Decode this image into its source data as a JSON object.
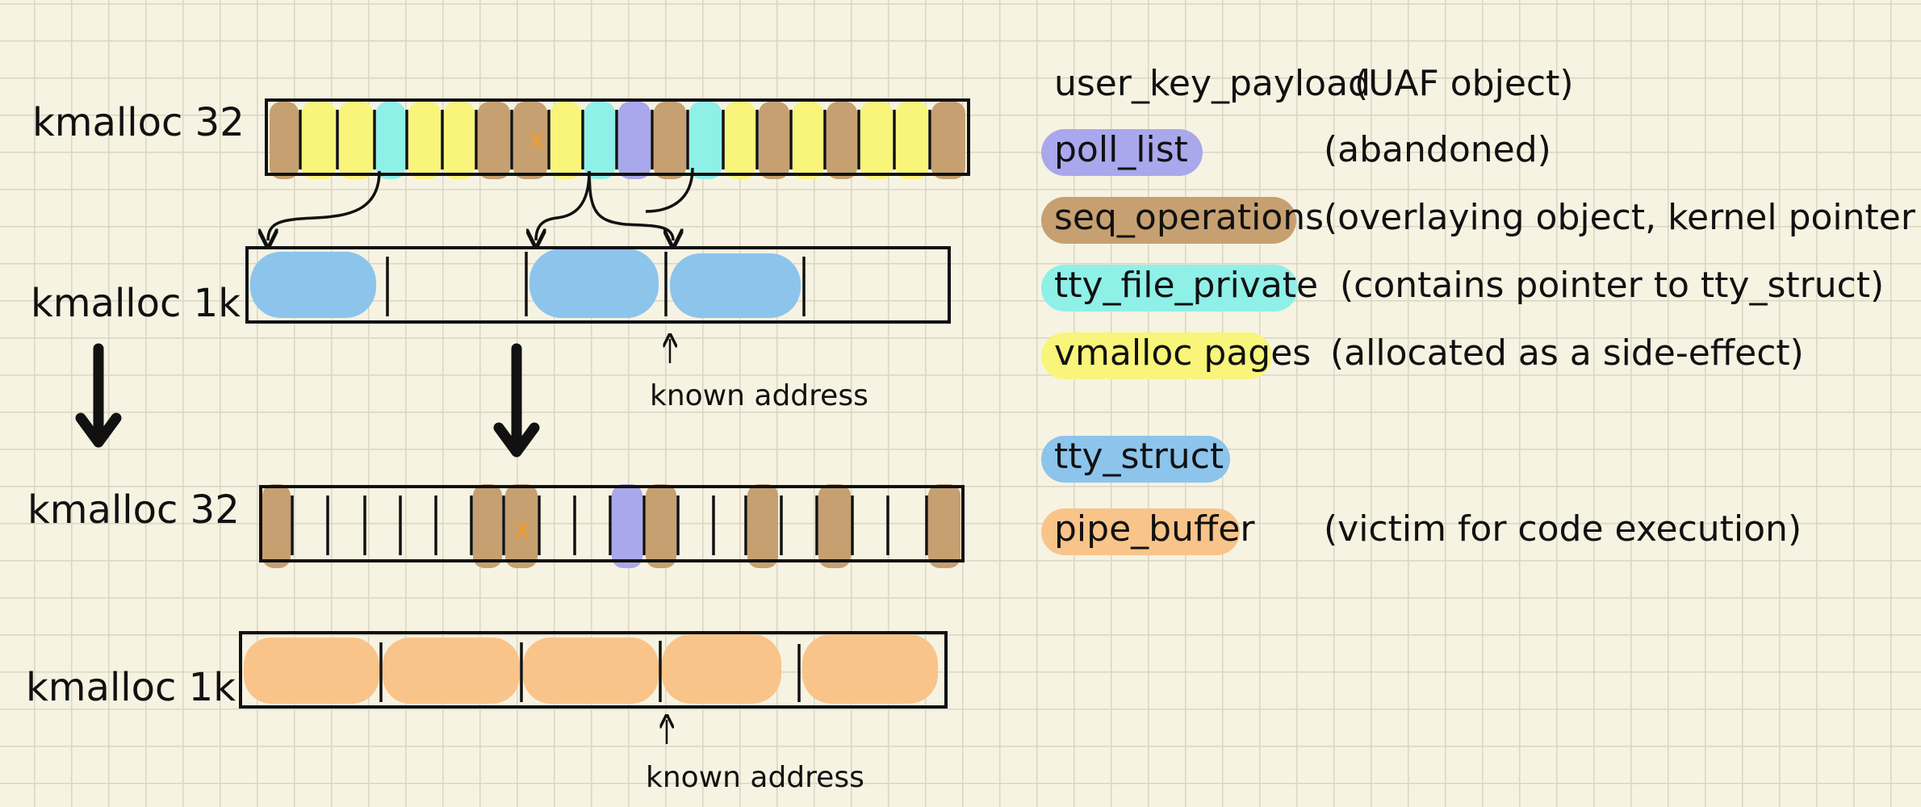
{
  "diagram": {
    "rows": [
      {
        "label": "kmalloc 32"
      },
      {
        "label": "kmalloc 1k"
      },
      {
        "label": "kmalloc 32"
      },
      {
        "label": "kmalloc 1k"
      }
    ],
    "annotations": [
      {
        "text": "known address"
      },
      {
        "text": "known address"
      }
    ],
    "legend": [
      {
        "name": "user_key_payload",
        "note": "(UAF object)",
        "color": "#f39a2b",
        "style": "text"
      },
      {
        "name": "poll_list",
        "note": "(abandoned)",
        "color": "#a9a8ec",
        "style": "highlight"
      },
      {
        "name": "seq_operations",
        "note": "(overlaying object, kernel pointer leak)",
        "color": "#c6a070",
        "style": "highlight"
      },
      {
        "name": "tty_file_private",
        "note": "(contains pointer to tty_struct)",
        "color": "#8ff0e8",
        "style": "highlight"
      },
      {
        "name": "vmalloc pages",
        "note": "(allocated as a side-effect)",
        "color": "#f9f57a",
        "style": "highlight"
      },
      {
        "name": "tty_struct",
        "note": "",
        "color": "#8cc4ec",
        "style": "highlight"
      },
      {
        "name": "pipe_buffer",
        "note": "(victim for code execution)",
        "color": "#f9c48a",
        "style": "highlight"
      }
    ],
    "uaf_marker": "x"
  }
}
